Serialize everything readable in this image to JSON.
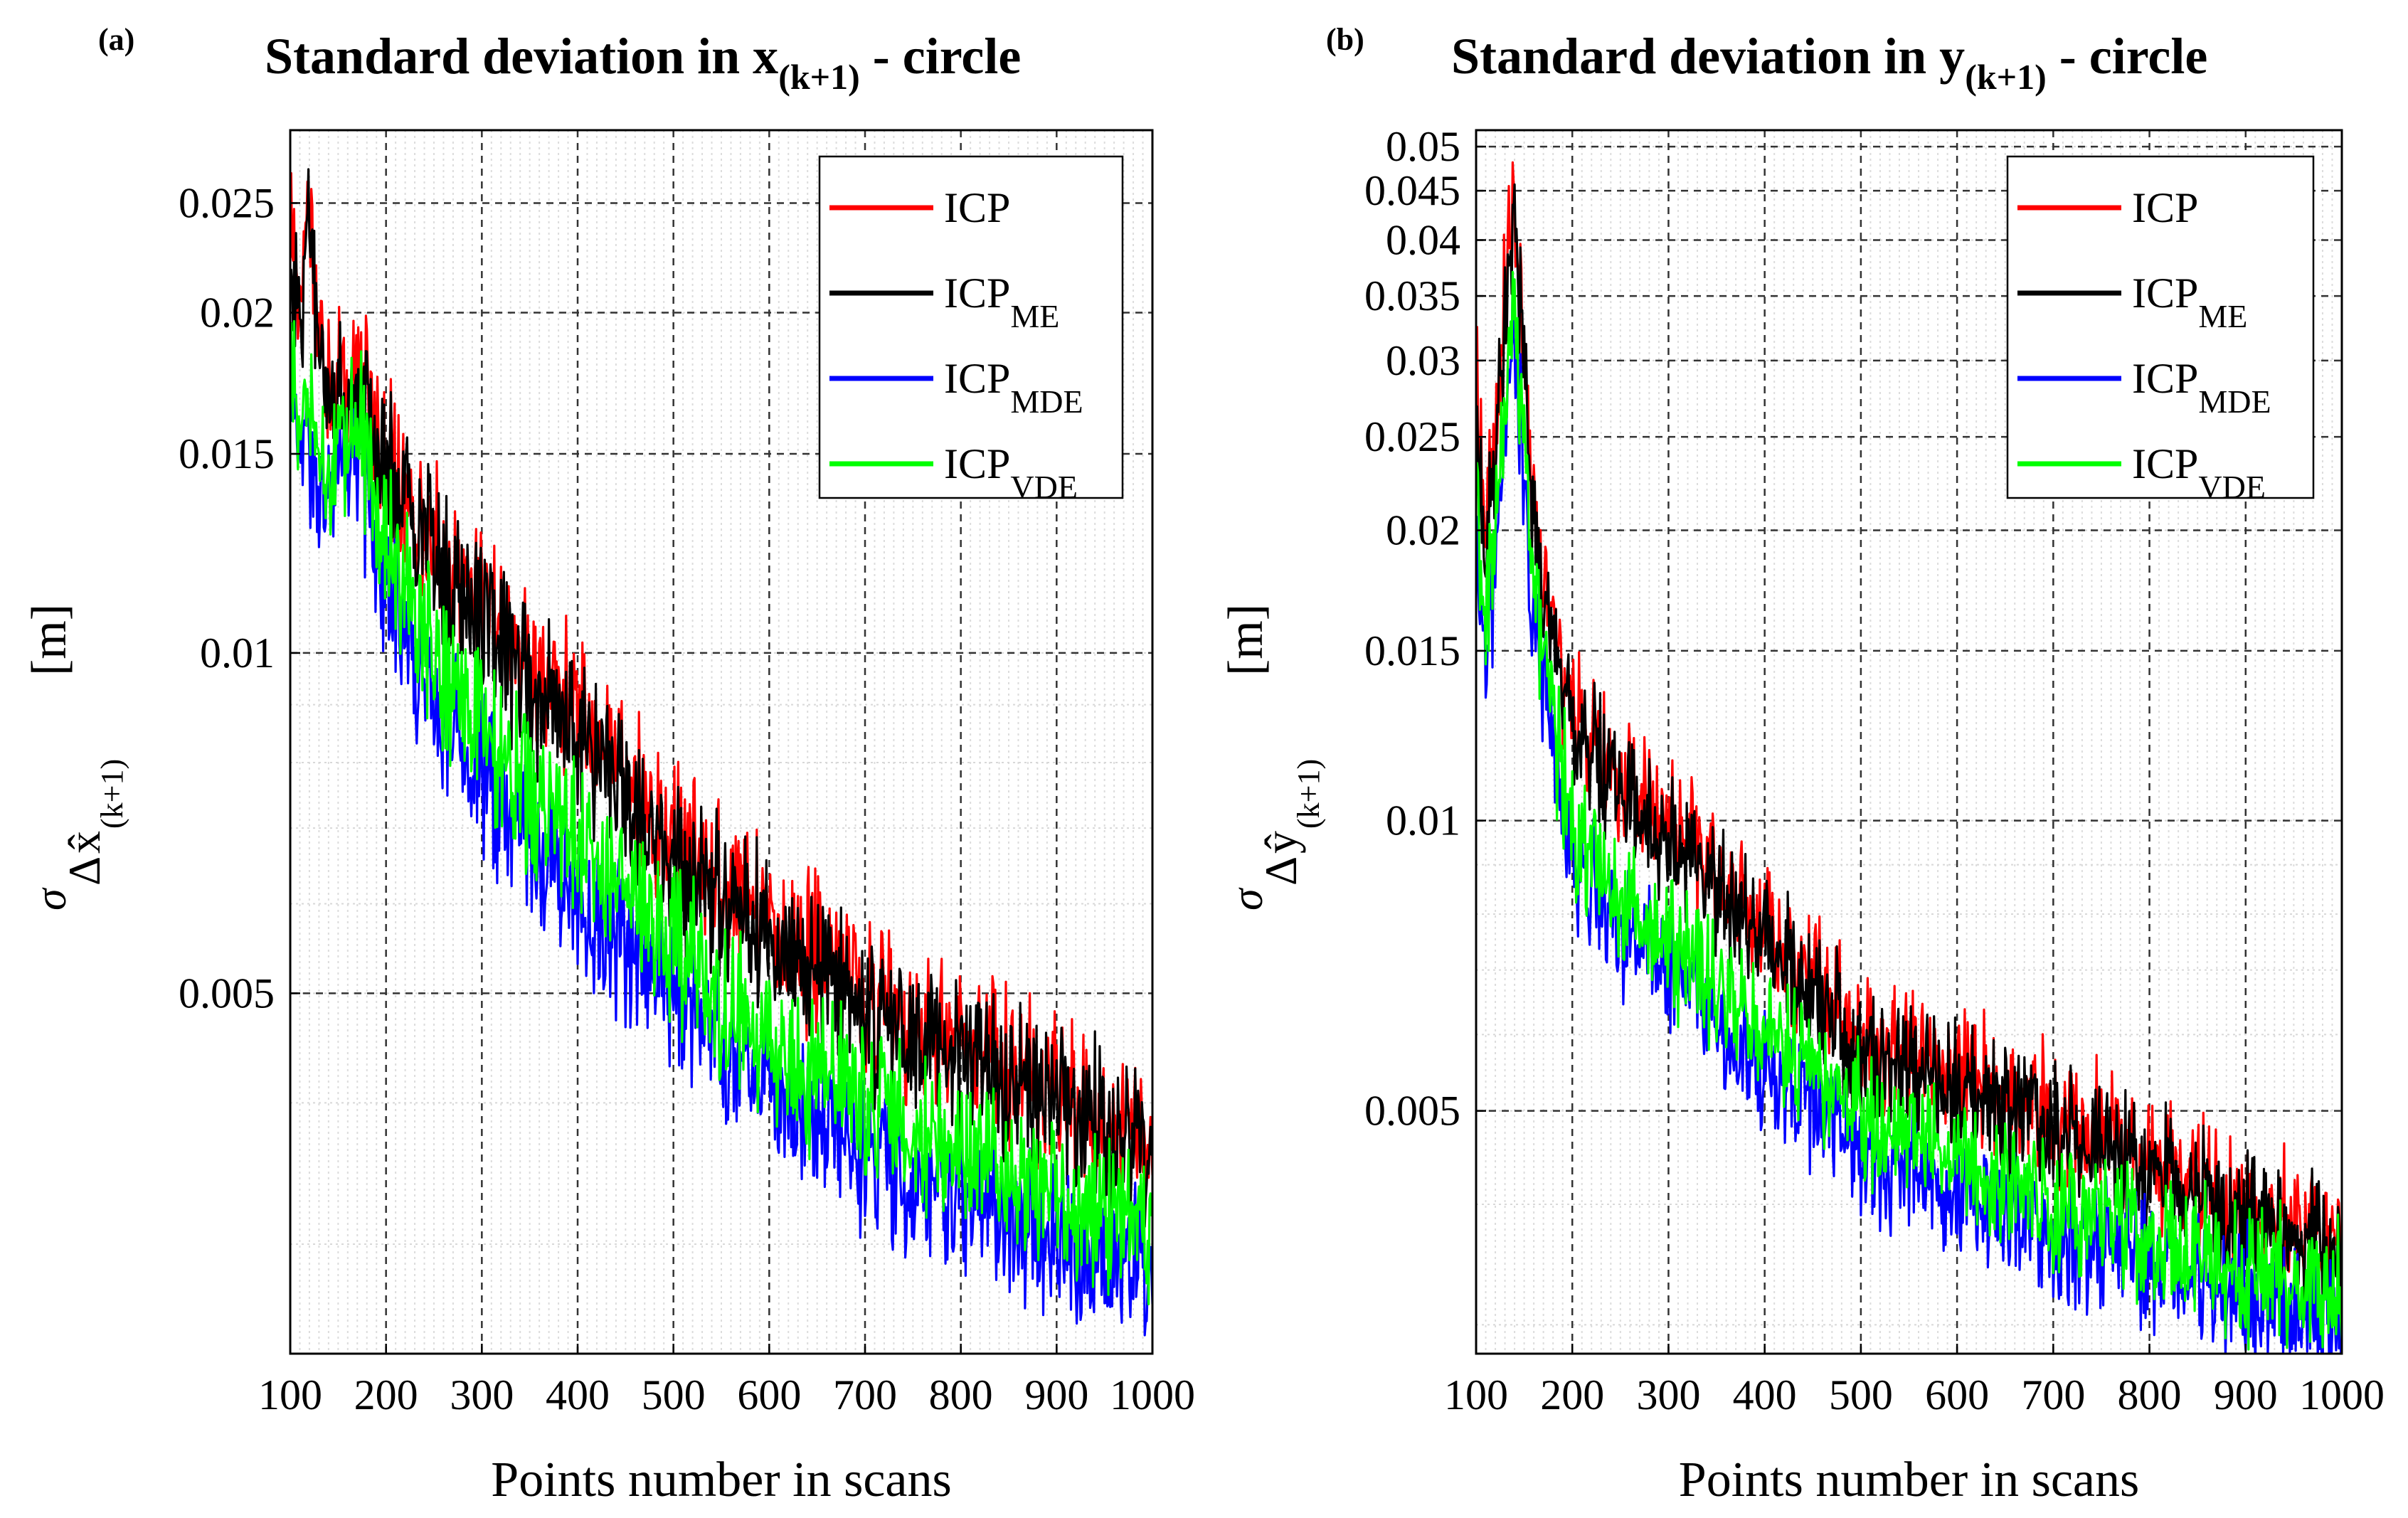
{
  "chart_data": [
    {
      "panel_label": "(a)",
      "type": "line",
      "title_main": "Standard deviation in x",
      "title_sub": "(k+1)",
      "title_tail": " - circle",
      "xlabel": "Points number in scans",
      "ylabel": {
        "symbol": "σ",
        "delta": "Δ",
        "var": "x̂",
        "sub": "(k+1)",
        "unit": "[m]"
      },
      "yscale": "log",
      "xlim": [
        100,
        1000
      ],
      "ylim": [
        0.0024,
        0.029
      ],
      "xticks": [
        100,
        200,
        300,
        400,
        500,
        600,
        700,
        800,
        900,
        1000
      ],
      "xtick_labels": [
        "100",
        "200",
        "300",
        "400",
        "500",
        "600",
        "700",
        "800",
        "900",
        "1000"
      ],
      "yticks": [
        0.005,
        0.01,
        0.015,
        0.02,
        0.025
      ],
      "ytick_labels": [
        "0.005",
        "0.01",
        "0.015",
        "0.02",
        "0.025"
      ],
      "legend": [
        {
          "base": "ICP",
          "sub": "",
          "color": "#ff0000"
        },
        {
          "base": "ICP",
          "sub": "ME",
          "color": "#000000"
        },
        {
          "base": "ICP",
          "sub": "MDE",
          "color": "#0000ff"
        },
        {
          "base": "ICP",
          "sub": "VDE",
          "color": "#00ff00"
        }
      ],
      "legend_position": "top-right",
      "series_trend": {
        "x": [
          100,
          110,
          120,
          130,
          150,
          170,
          200,
          250,
          300,
          400,
          500,
          600,
          700,
          800,
          900,
          1000
        ],
        "ICP": [
          0.023,
          0.021,
          0.025,
          0.019,
          0.0175,
          0.0175,
          0.015,
          0.0125,
          0.0108,
          0.0088,
          0.0068,
          0.0058,
          0.005,
          0.0045,
          0.0041,
          0.0037
        ],
        "ICP_ME": [
          0.022,
          0.02,
          0.024,
          0.0185,
          0.017,
          0.017,
          0.0146,
          0.0122,
          0.0105,
          0.0085,
          0.0066,
          0.0056,
          0.0048,
          0.0044,
          0.004,
          0.0036
        ],
        "ICP_MDE": [
          0.017,
          0.0155,
          0.0155,
          0.0135,
          0.0145,
          0.015,
          0.0115,
          0.0092,
          0.0077,
          0.006,
          0.005,
          0.0041,
          0.0036,
          0.0033,
          0.003,
          0.0028
        ],
        "ICP_VDE": [
          0.0185,
          0.0165,
          0.017,
          0.0145,
          0.0155,
          0.016,
          0.0125,
          0.01,
          0.0084,
          0.0068,
          0.0055,
          0.0045,
          0.004,
          0.0036,
          0.0033,
          0.0031
        ]
      },
      "noise_amplitude": 0.11
    },
    {
      "panel_label": "(b)",
      "type": "line",
      "title_main": "Standard deviation in y",
      "title_sub": "(k+1)",
      "title_tail": " - circle",
      "xlabel": "Points number in scans",
      "ylabel": {
        "symbol": "σ",
        "delta": "Δ",
        "var": "ŷ",
        "sub": "(k+1)",
        "unit": "[m]"
      },
      "yscale": "log",
      "xlim": [
        100,
        1000
      ],
      "ylim": [
        0.0028,
        0.052
      ],
      "xticks": [
        100,
        200,
        300,
        400,
        500,
        600,
        700,
        800,
        900,
        1000
      ],
      "xtick_labels": [
        "100",
        "200",
        "300",
        "400",
        "500",
        "600",
        "700",
        "800",
        "900",
        "1000"
      ],
      "yticks": [
        0.005,
        0.01,
        0.015,
        0.02,
        0.025,
        0.03,
        0.035,
        0.04,
        0.045,
        0.05
      ],
      "ytick_labels": [
        "0.005",
        "0.01",
        "0.015",
        "0.02",
        "0.025",
        "0.03",
        "0.035",
        "0.04",
        "0.045",
        "0.05"
      ],
      "legend": [
        {
          "base": "ICP",
          "sub": "",
          "color": "#ff0000"
        },
        {
          "base": "ICP",
          "sub": "ME",
          "color": "#000000"
        },
        {
          "base": "ICP",
          "sub": "MDE",
          "color": "#0000ff"
        },
        {
          "base": "ICP",
          "sub": "VDE",
          "color": "#00ff00"
        }
      ],
      "legend_position": "top-right",
      "series_trend": {
        "x": [
          100,
          110,
          120,
          130,
          140,
          150,
          165,
          200,
          250,
          300,
          400,
          500,
          600,
          700,
          800,
          900,
          1000
        ],
        "ICP": [
          0.028,
          0.02,
          0.024,
          0.035,
          0.045,
          0.03,
          0.018,
          0.013,
          0.0112,
          0.01,
          0.0078,
          0.006,
          0.0055,
          0.005,
          0.0045,
          0.004,
          0.0038
        ],
        "ICP_ME": [
          0.027,
          0.019,
          0.023,
          0.034,
          0.043,
          0.029,
          0.0175,
          0.0125,
          0.0108,
          0.0096,
          0.0075,
          0.0058,
          0.0053,
          0.0048,
          0.0043,
          0.0039,
          0.0036
        ],
        "ICP_MDE": [
          0.02,
          0.0145,
          0.018,
          0.026,
          0.032,
          0.022,
          0.0145,
          0.0092,
          0.0078,
          0.007,
          0.0055,
          0.0046,
          0.0041,
          0.0037,
          0.0035,
          0.0032,
          0.0031
        ],
        "ICP_VDE": [
          0.022,
          0.016,
          0.02,
          0.028,
          0.034,
          0.024,
          0.0155,
          0.0098,
          0.0084,
          0.0075,
          0.006,
          0.005,
          0.0045,
          0.004,
          0.0037,
          0.0034,
          0.0033
        ]
      },
      "noise_amplitude": 0.11
    }
  ]
}
